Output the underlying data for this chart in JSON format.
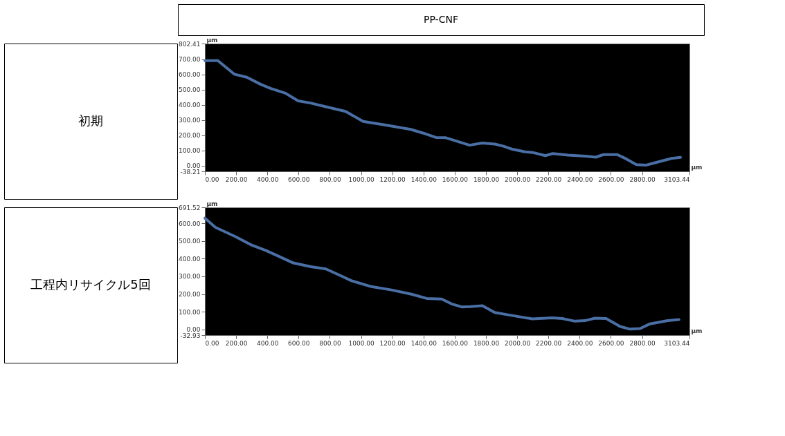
{
  "chart_data": [
    {
      "type": "line",
      "title": "PP-CNF",
      "annotations": [
        "初期"
      ],
      "xlabel": "µm",
      "ylabel": "µm",
      "color": "#4a6fa5",
      "grid": false,
      "x": [
        0,
        83,
        188,
        268,
        356,
        420,
        516,
        597,
        677,
        789,
        901,
        1014,
        1158,
        1318,
        1399,
        1479,
        1543,
        1695,
        1776,
        1857,
        1913,
        1970,
        2051,
        2099,
        2180,
        2228,
        2326,
        2439,
        2504,
        2552,
        2641,
        2698,
        2763,
        2827,
        2892,
        2989,
        3046
      ],
      "values": [
        690,
        690,
        601,
        581,
        535,
        508,
        476,
        425,
        411,
        383,
        356,
        290,
        266,
        238,
        213,
        185,
        183,
        134,
        148,
        141,
        127,
        107,
        90,
        86,
        65,
        79,
        69,
        62,
        55,
        72,
        72,
        44,
        6,
        3,
        21,
        47,
        54
      ],
      "xlim": [
        0,
        3103.44
      ],
      "ylim": [
        -38.21,
        802.41
      ],
      "xticks": [
        {
          "value": 0,
          "label": "0.00"
        },
        {
          "value": 200,
          "label": "200.00"
        },
        {
          "value": 400,
          "label": "400.00"
        },
        {
          "value": 600,
          "label": "600.00"
        },
        {
          "value": 800,
          "label": "800.00"
        },
        {
          "value": 1000,
          "label": "1000.00"
        },
        {
          "value": 1200,
          "label": "1200.00"
        },
        {
          "value": 1400,
          "label": "1400.00"
        },
        {
          "value": 1600,
          "label": "1600.00"
        },
        {
          "value": 1800,
          "label": "1800.00"
        },
        {
          "value": 2000,
          "label": "2000.00"
        },
        {
          "value": 2200,
          "label": "2200.00"
        },
        {
          "value": 2400,
          "label": "2400.00"
        },
        {
          "value": 2600,
          "label": "2600.00"
        },
        {
          "value": 2800,
          "label": "2800.00"
        },
        3103.44
      ],
      "yticks": [
        -38.21,
        {
          "value": 0,
          "label": "0.00"
        },
        {
          "value": 100,
          "label": "100.00"
        },
        {
          "value": 200,
          "label": "200.00"
        },
        {
          "value": 300,
          "label": "300.00"
        },
        {
          "value": 400,
          "label": "400.00"
        },
        {
          "value": 500,
          "label": "500.00"
        },
        {
          "value": 600,
          "label": "600.00"
        },
        {
          "value": 700,
          "label": "700.00"
        },
        802.41
      ]
    },
    {
      "type": "line",
      "annotations": [
        "工程内リサイクル5回"
      ],
      "xlabel": "µm",
      "ylabel": "µm",
      "color": "#4a6fa5",
      "grid": false,
      "x": [
        0,
        67,
        196,
        293,
        389,
        470,
        566,
        679,
        775,
        872,
        937,
        1066,
        1195,
        1323,
        1420,
        1516,
        1580,
        1645,
        1701,
        1776,
        1856,
        1936,
        2097,
        2225,
        2289,
        2370,
        2434,
        2498,
        2570,
        2659,
        2723,
        2787,
        2851,
        2964,
        3036
      ],
      "values": [
        630,
        578,
        525,
        480,
        447,
        415,
        376,
        355,
        342,
        303,
        276,
        242,
        223,
        199,
        175,
        172,
        144,
        127,
        129,
        134,
        95,
        83,
        59,
        65,
        61,
        46,
        49,
        63,
        61,
        16,
        1,
        4,
        31,
        49,
        55
      ],
      "xlim": [
        0,
        3103.44
      ],
      "ylim": [
        -32.93,
        691.52
      ],
      "xticks": [
        {
          "value": 0,
          "label": "0.00"
        },
        {
          "value": 200,
          "label": "200.00"
        },
        {
          "value": 400,
          "label": "400.00"
        },
        {
          "value": 600,
          "label": "600.00"
        },
        {
          "value": 800,
          "label": "800.00"
        },
        {
          "value": 1000,
          "label": "1000.00"
        },
        {
          "value": 1200,
          "label": "1200.00"
        },
        {
          "value": 1400,
          "label": "1400.00"
        },
        {
          "value": 1600,
          "label": "1600.00"
        },
        {
          "value": 1800,
          "label": "1800.00"
        },
        {
          "value": 2000,
          "label": "2000.00"
        },
        {
          "value": 2200,
          "label": "2200.00"
        },
        {
          "value": 2400,
          "label": "2400.00"
        },
        {
          "value": 2600,
          "label": "2600.00"
        },
        {
          "value": 2800,
          "label": "2800.00"
        },
        3103.44
      ],
      "yticks": [
        -32.93,
        {
          "value": 0,
          "label": "0.00"
        },
        {
          "value": 100,
          "label": "100.00"
        },
        {
          "value": 200,
          "label": "200.00"
        },
        {
          "value": 300,
          "label": "300.00"
        },
        {
          "value": 400,
          "label": "400.00"
        },
        {
          "value": 500,
          "label": "500.00"
        },
        {
          "value": 600,
          "label": "600.00"
        },
        691.52
      ]
    }
  ]
}
